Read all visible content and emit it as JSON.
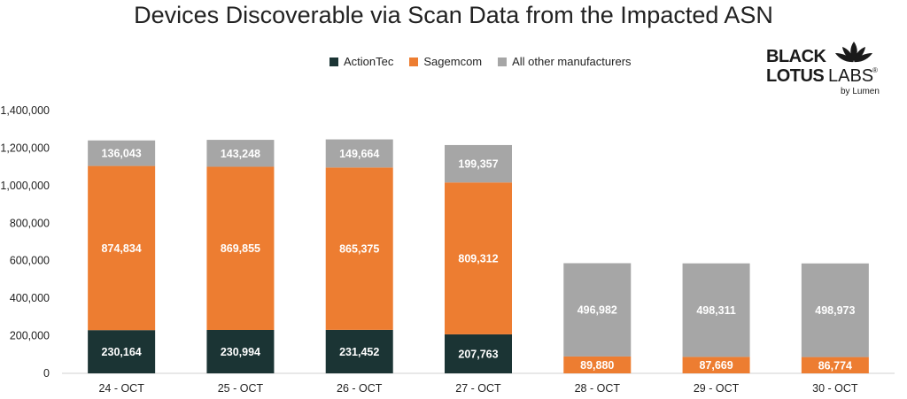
{
  "chart_data": {
    "type": "bar",
    "stacked": true,
    "title": "Devices Discoverable via Scan Data from the Impacted ASN",
    "categories": [
      "24 - OCT",
      "25 - OCT",
      "26 - OCT",
      "27 - OCT",
      "28 - OCT",
      "29 - OCT",
      "30 - OCT"
    ],
    "series": [
      {
        "name": "ActionTec",
        "color": "#1b3434",
        "values": [
          230164,
          230994,
          231452,
          207763,
          0,
          0,
          0
        ],
        "labels": [
          "230,164",
          "230,994",
          "231,452",
          "207,763",
          "",
          "",
          ""
        ]
      },
      {
        "name": "Sagemcom",
        "color": "#ed7d31",
        "values": [
          874834,
          869855,
          865375,
          809312,
          89880,
          87669,
          86774
        ],
        "labels": [
          "874,834",
          "869,855",
          "865,375",
          "809,312",
          "89,880",
          "87,669",
          "86,774"
        ]
      },
      {
        "name": "All other manufacturers",
        "color": "#a6a6a6",
        "values": [
          136043,
          143248,
          149664,
          199357,
          496982,
          498311,
          498973
        ],
        "labels": [
          "136,043",
          "143,248",
          "149,664",
          "199,357",
          "496,982",
          "498,311",
          "498,973"
        ]
      }
    ],
    "ylim": [
      0,
      1400000
    ],
    "yticks": [
      0,
      200000,
      400000,
      600000,
      800000,
      1000000,
      1200000,
      1400000
    ],
    "ytick_labels": [
      "0",
      "200,000",
      "400,000",
      "600,000",
      "800,000",
      "1,000,000",
      "1,200,000",
      "1,400,000"
    ],
    "grid": false,
    "legend_position": "top-center"
  },
  "logo": {
    "line1": "BLACK",
    "line2": "LOTUS",
    "line2b": "LABS",
    "reg": "®",
    "sub": "by Lumen"
  }
}
